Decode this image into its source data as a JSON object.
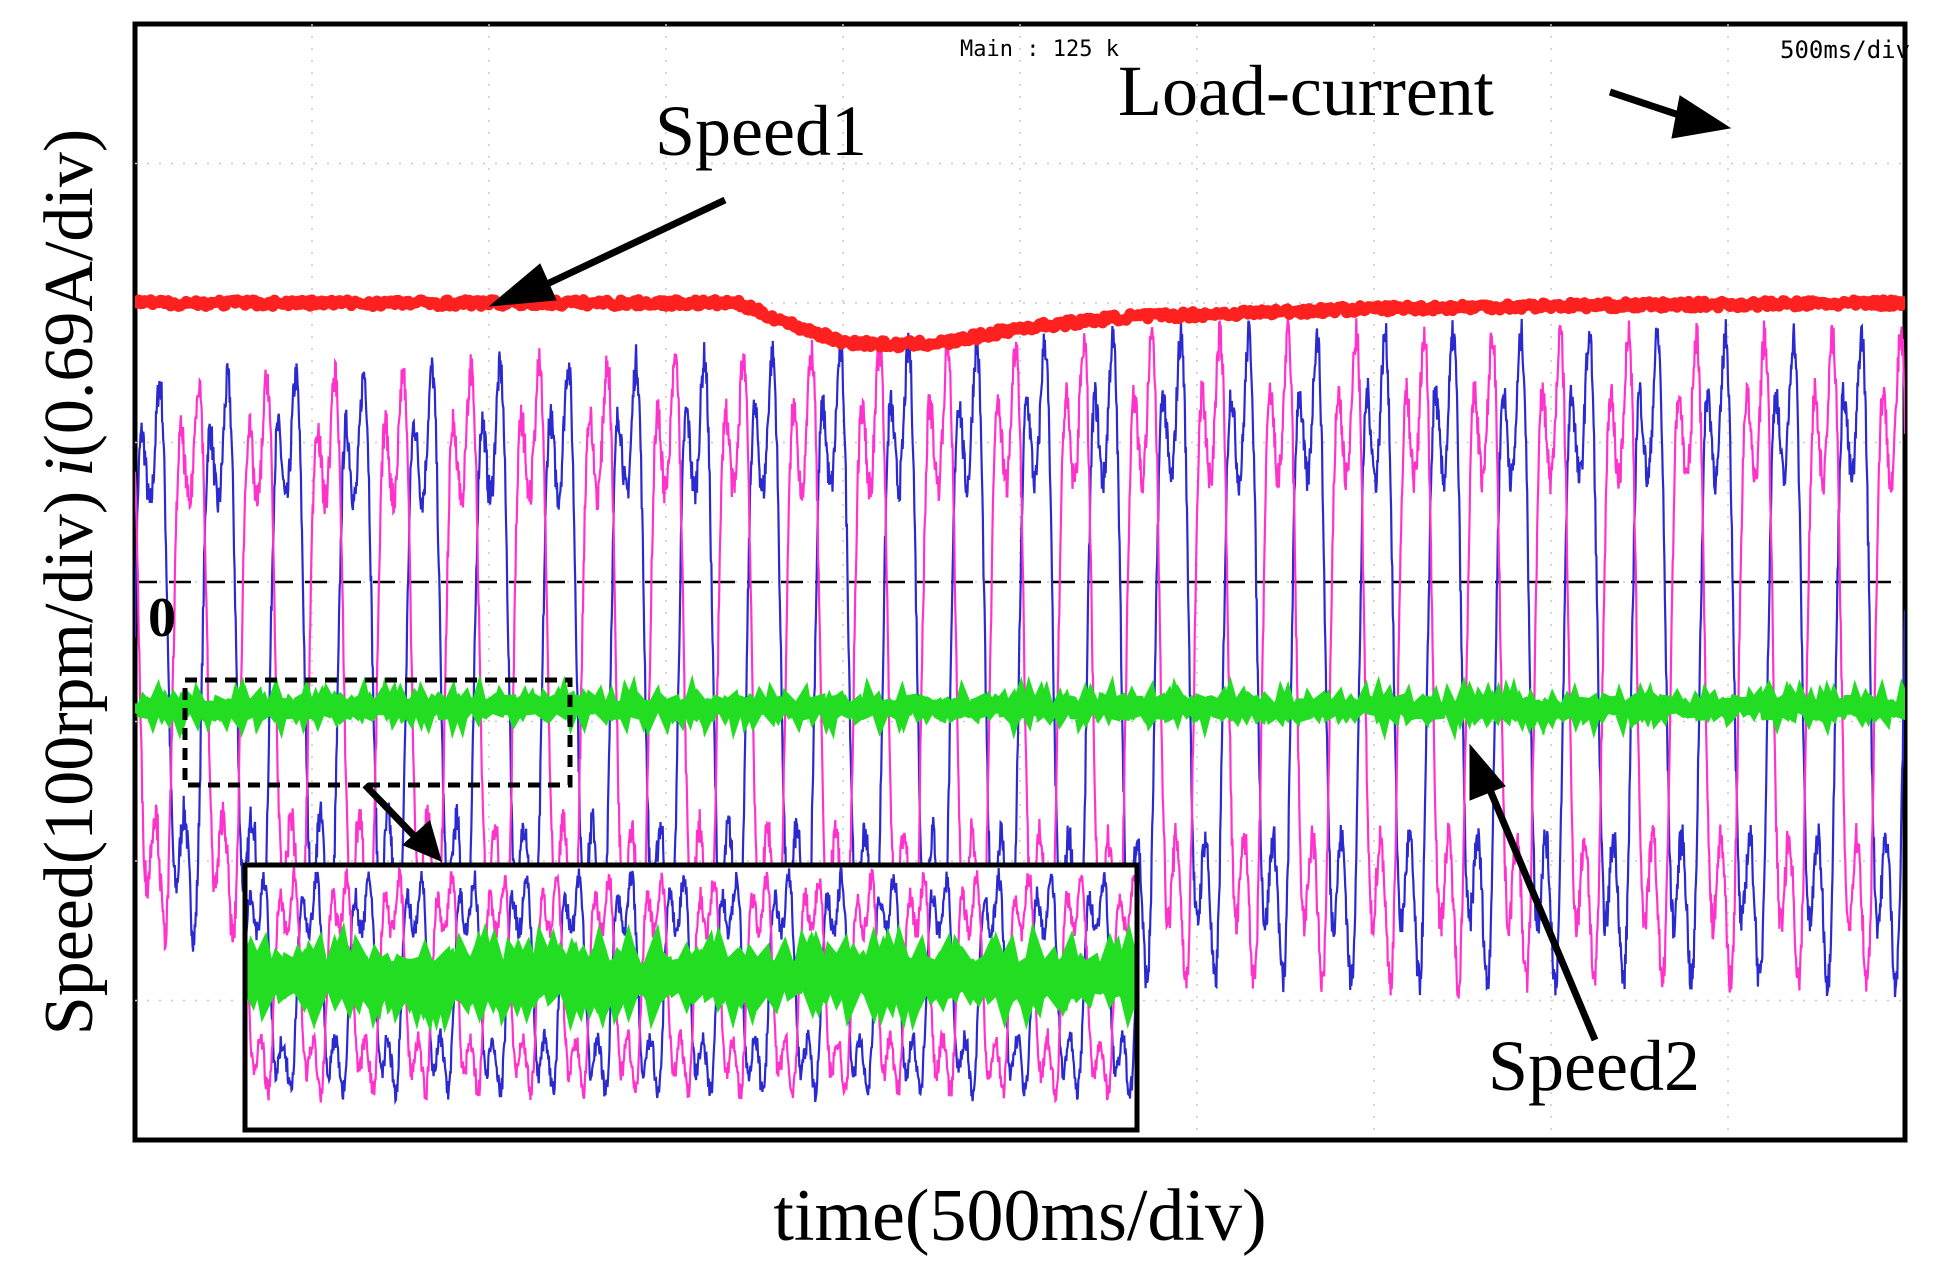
{
  "chart_data": {
    "type": "line",
    "title": "",
    "xlabel": "time(500ms/div)",
    "ylabel_main": "Speed(100rpm/div)",
    "ylabel_italic": "i",
    "ylabel_tail": "(0.69A/div)",
    "scope_header": "Main : 125 k",
    "timebase": "500ms/div",
    "zero_label": "0",
    "divisions": {
      "x": 10,
      "y": 8
    },
    "x_unit": "div",
    "xlim": [
      0,
      10
    ],
    "ylim": [
      -4,
      4
    ],
    "grid": true,
    "zero_line_y": 0,
    "series": [
      {
        "name": "Speed1",
        "color": "#ff2020",
        "points": [
          [
            0,
            2.0
          ],
          [
            3.4,
            2.0
          ],
          [
            3.7,
            1.85
          ],
          [
            4.0,
            1.72
          ],
          [
            4.3,
            1.7
          ],
          [
            4.6,
            1.72
          ],
          [
            5.0,
            1.82
          ],
          [
            5.6,
            1.9
          ],
          [
            6.3,
            1.93
          ],
          [
            7.0,
            1.96
          ],
          [
            8.0,
            1.98
          ],
          [
            10.0,
            2.0
          ]
        ]
      },
      {
        "name": "Speed2",
        "color": "#22dd22",
        "points": [
          [
            0,
            -0.9
          ],
          [
            10,
            -0.9
          ]
        ]
      },
      {
        "name": "Load-current phase A",
        "color": "#2a2ad0",
        "amplitude_div": 2.6,
        "cycles": 26
      },
      {
        "name": "Load-current phase B",
        "color": "#ff33cc",
        "amplitude_div": 2.6,
        "cycles": 26
      }
    ],
    "annotations": [
      {
        "text": "Speed1",
        "target": "Speed1 trace"
      },
      {
        "text": "Load-current",
        "target": "current peaks"
      },
      {
        "text": "Speed2",
        "target": "Speed2 trace"
      }
    ],
    "inset": {
      "description": "zoomed view of Speed2 and load current (dashed region)"
    }
  }
}
